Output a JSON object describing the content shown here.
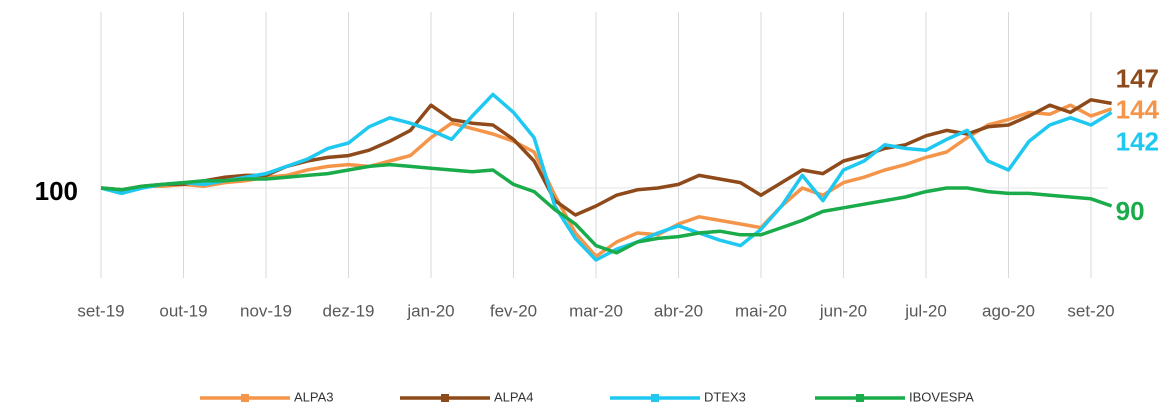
{
  "chart_data": {
    "type": "line",
    "categories": [
      "set-19",
      null,
      null,
      null,
      "out-19",
      null,
      null,
      null,
      "nov-19",
      null,
      null,
      null,
      "dez-19",
      null,
      null,
      null,
      "jan-20",
      null,
      null,
      null,
      "fev-20",
      null,
      null,
      null,
      "mar-20",
      null,
      null,
      null,
      "abr-20",
      null,
      null,
      null,
      "mai-20",
      null,
      null,
      null,
      "jun-20",
      null,
      null,
      null,
      "jul-20",
      null,
      null,
      null,
      "ago-20",
      null,
      null,
      null,
      "set-20",
      null
    ],
    "ylim": [
      50,
      165
    ],
    "grid": true,
    "series": [
      {
        "name": "ALPA3",
        "color": "#f4954a",
        "values": [
          100,
          99,
          101,
          101,
          102,
          101,
          103,
          104,
          106,
          107,
          110,
          112,
          113,
          112,
          115,
          118,
          128,
          136,
          133,
          130,
          126,
          120,
          96,
          75,
          62,
          70,
          75,
          74,
          80,
          84,
          82,
          80,
          78,
          90,
          100,
          96,
          103,
          106,
          110,
          113,
          117,
          120,
          128,
          135,
          138,
          142,
          141,
          146,
          140,
          144
        ]
      },
      {
        "name": "ALPA4",
        "color": "#8e4a1a",
        "values": [
          100,
          99,
          101,
          102,
          102,
          104,
          106,
          107,
          107,
          112,
          115,
          117,
          118,
          121,
          126,
          132,
          146,
          138,
          136,
          135,
          127,
          115,
          93,
          85,
          90,
          96,
          99,
          100,
          102,
          107,
          105,
          103,
          96,
          103,
          110,
          108,
          115,
          118,
          122,
          124,
          129,
          132,
          130,
          134,
          135,
          140,
          146,
          142,
          149,
          147
        ]
      },
      {
        "name": "DTEX3",
        "color": "#1ec8f0",
        "values": [
          100,
          97,
          100,
          102,
          103,
          102,
          104,
          106,
          108,
          112,
          116,
          122,
          125,
          134,
          139,
          136,
          132,
          127,
          140,
          152,
          142,
          128,
          90,
          72,
          60,
          66,
          70,
          75,
          79,
          75,
          71,
          68,
          77,
          90,
          107,
          93,
          110,
          115,
          124,
          122,
          121,
          127,
          132,
          115,
          110,
          126,
          135,
          139,
          135,
          142
        ]
      },
      {
        "name": "IBOVESPA",
        "color": "#1aab4a",
        "values": [
          100,
          99,
          101,
          102,
          103,
          104,
          104,
          105,
          105,
          106,
          107,
          108,
          110,
          112,
          113,
          112,
          111,
          110,
          109,
          110,
          102,
          98,
          88,
          80,
          68,
          64,
          70,
          72,
          73,
          75,
          76,
          74,
          74,
          78,
          82,
          87,
          89,
          91,
          93,
          95,
          98,
          100,
          100,
          98,
          97,
          97,
          96,
          95,
          94,
          90
        ]
      }
    ]
  }
}
